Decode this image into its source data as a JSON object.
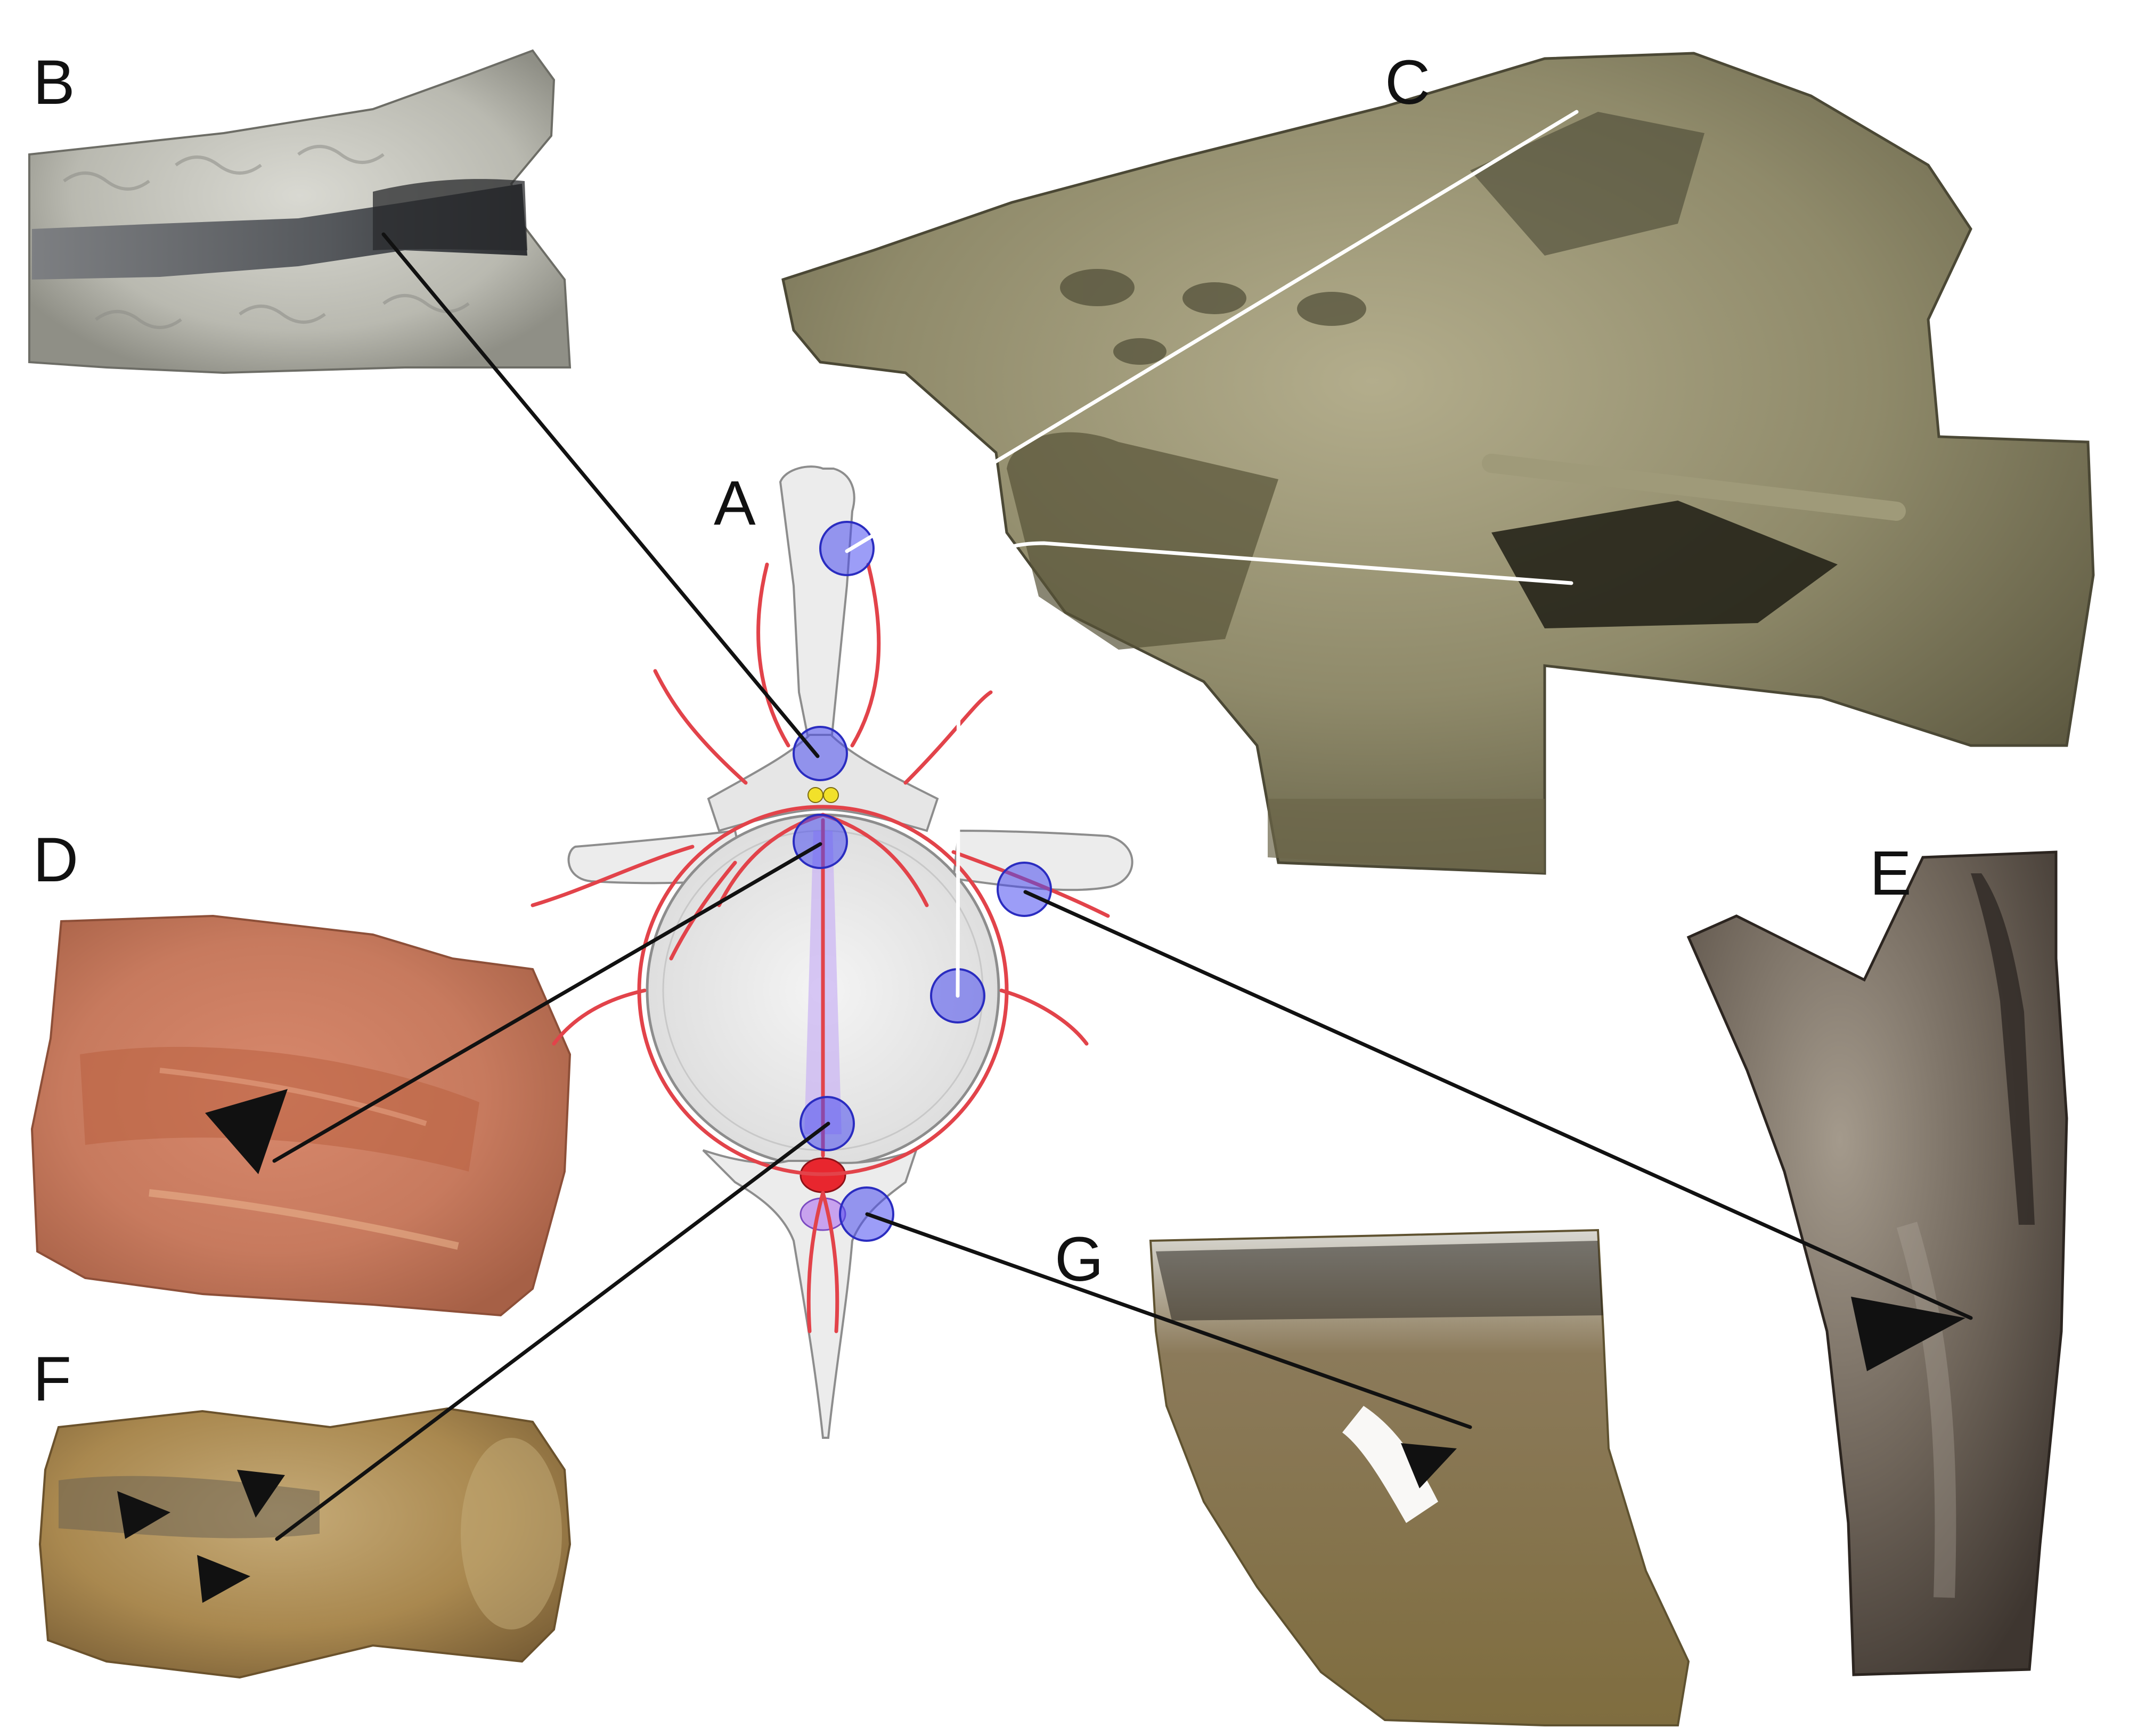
{
  "figure": {
    "panel_labels": {
      "a": "A",
      "b": "B",
      "c": "C",
      "d": "D",
      "e": "E",
      "f": "F",
      "g": "G"
    },
    "colors": {
      "vessel": "#e2434a",
      "foramen_marker": "#4a4cf0",
      "bone_diagram": "#ececec",
      "ganglion": "#f2e12a",
      "aorta": "#e8262e",
      "canal": "#b890f0",
      "leader_line": "#111111",
      "background": "#ffffff"
    }
  }
}
